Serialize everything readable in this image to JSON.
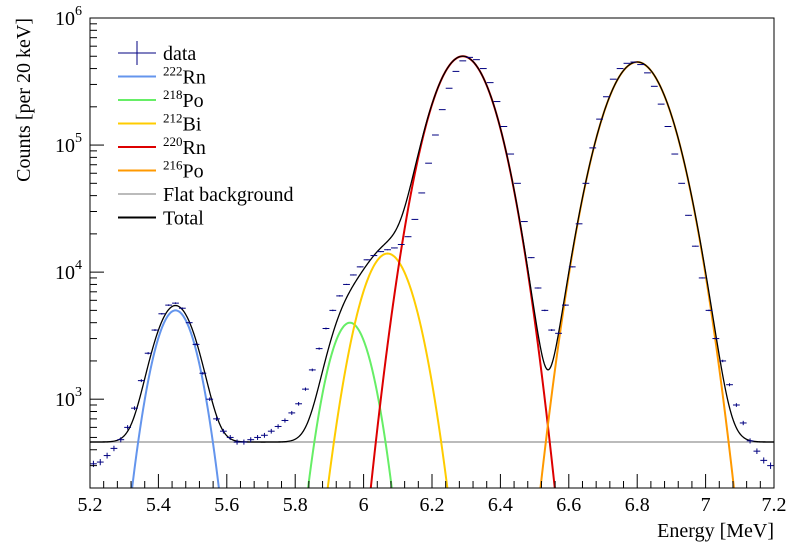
{
  "chart_data": {
    "type": "line",
    "xlabel": "Energy [MeV]",
    "ylabel": "Counts [per 20 keV]",
    "xlim": [
      5.2,
      7.2
    ],
    "ylim": [
      200,
      1000000
    ],
    "yscale": "log",
    "grid": false,
    "legend_position": "top-left",
    "x_ticks": [
      "5.2",
      "5.4",
      "5.6",
      "5.8",
      "6",
      "6.2",
      "6.4",
      "6.6",
      "6.8",
      "7",
      "7.2"
    ],
    "y_ticks": [
      {
        "base": "10",
        "exp": "3",
        "value": 1000
      },
      {
        "base": "10",
        "exp": "4",
        "value": 10000
      },
      {
        "base": "10",
        "exp": "5",
        "value": 100000
      },
      {
        "base": "10",
        "exp": "6",
        "value": 1000000
      }
    ],
    "legend": [
      {
        "key": "data",
        "label_sup": "",
        "label": "data",
        "color": "#000080",
        "style": "errorbar"
      },
      {
        "key": "rn222",
        "label_sup": "222",
        "label": "Rn",
        "color": "#6495ED",
        "style": "line"
      },
      {
        "key": "po218",
        "label_sup": "218",
        "label": "Po",
        "color": "#66EE66",
        "style": "line"
      },
      {
        "key": "bi212",
        "label_sup": "212",
        "label": "Bi",
        "color": "#FFCC00",
        "style": "line"
      },
      {
        "key": "rn220",
        "label_sup": "220",
        "label": "Rn",
        "color": "#DD0000",
        "style": "line"
      },
      {
        "key": "po216",
        "label_sup": "216",
        "label": "Po",
        "color": "#FF9900",
        "style": "line"
      },
      {
        "key": "flat",
        "label_sup": "",
        "label": "Flat background",
        "color": "#BBBBBB",
        "style": "line"
      },
      {
        "key": "total",
        "label_sup": "",
        "label": "Total",
        "color": "#000000",
        "style": "line"
      }
    ],
    "components": [
      {
        "key": "rn222",
        "amplitude": 5000,
        "mean": 5.45,
        "sigma": 0.05,
        "color": "#6495ED"
      },
      {
        "key": "po218",
        "amplitude": 4000,
        "mean": 5.96,
        "sigma": 0.05,
        "color": "#66EE66"
      },
      {
        "key": "bi212",
        "amplitude": 14000,
        "mean": 6.07,
        "sigma": 0.06,
        "color": "#FFCC00"
      },
      {
        "key": "rn220",
        "amplitude": 500000,
        "mean": 6.29,
        "sigma": 0.068,
        "color": "#DD0000"
      },
      {
        "key": "po216",
        "amplitude": 450000,
        "mean": 6.8,
        "sigma": 0.072,
        "color": "#FF9900"
      }
    ],
    "flat_background": 460,
    "data": {
      "x": [
        5.21,
        5.23,
        5.25,
        5.27,
        5.29,
        5.31,
        5.33,
        5.35,
        5.37,
        5.39,
        5.41,
        5.43,
        5.45,
        5.47,
        5.49,
        5.51,
        5.53,
        5.55,
        5.57,
        5.59,
        5.61,
        5.63,
        5.65,
        5.67,
        5.69,
        5.71,
        5.73,
        5.75,
        5.77,
        5.79,
        5.81,
        5.83,
        5.85,
        5.87,
        5.89,
        5.91,
        5.93,
        5.95,
        5.97,
        5.99,
        6.01,
        6.03,
        6.05,
        6.07,
        6.09,
        6.11,
        6.13,
        6.15,
        6.17,
        6.19,
        6.21,
        6.23,
        6.25,
        6.27,
        6.29,
        6.31,
        6.33,
        6.35,
        6.37,
        6.39,
        6.41,
        6.43,
        6.45,
        6.47,
        6.49,
        6.51,
        6.53,
        6.55,
        6.57,
        6.59,
        6.61,
        6.63,
        6.65,
        6.67,
        6.69,
        6.71,
        6.73,
        6.75,
        6.77,
        6.79,
        6.81,
        6.83,
        6.85,
        6.87,
        6.89,
        6.91,
        6.93,
        6.95,
        6.97,
        6.99,
        7.01,
        7.03,
        7.05,
        7.07,
        7.09,
        7.11,
        7.13,
        7.15,
        7.17,
        7.19
      ],
      "y": [
        310,
        320,
        360,
        410,
        480,
        600,
        850,
        1400,
        2300,
        3500,
        4700,
        5500,
        5700,
        5200,
        4000,
        2700,
        1600,
        1000,
        700,
        560,
        500,
        460,
        460,
        480,
        500,
        520,
        560,
        610,
        680,
        780,
        920,
        1200,
        1700,
        2500,
        3600,
        5000,
        6500,
        8000,
        9500,
        11000,
        12500,
        13500,
        14500,
        15000,
        15500,
        16500,
        19000,
        26000,
        42000,
        72000,
        120000,
        190000,
        280000,
        380000,
        460000,
        490000,
        470000,
        400000,
        310000,
        220000,
        140000,
        85000,
        50000,
        25000,
        13000,
        7500,
        5000,
        3500,
        3300,
        5500,
        11000,
        24000,
        50000,
        95000,
        160000,
        240000,
        330000,
        400000,
        440000,
        450000,
        430000,
        370000,
        290000,
        210000,
        140000,
        85000,
        50000,
        28000,
        16000,
        9000,
        5000,
        3000,
        2000,
        1300,
        900,
        650,
        470,
        390,
        330,
        300
      ]
    }
  }
}
